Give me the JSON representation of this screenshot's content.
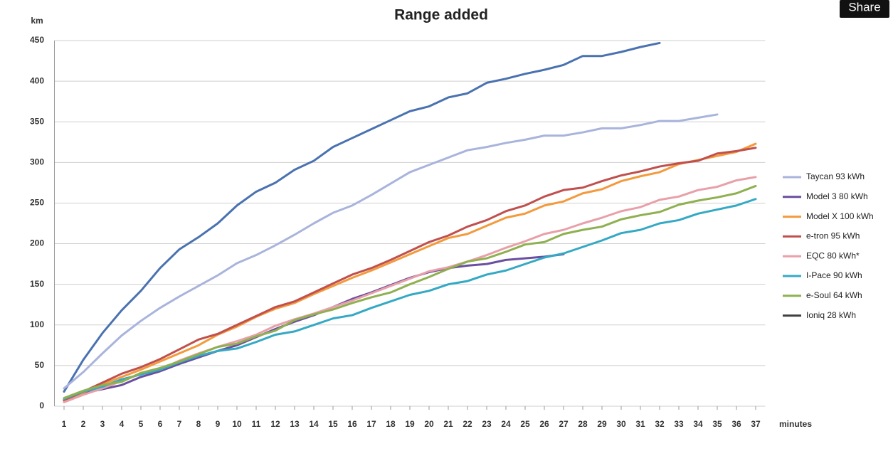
{
  "share_button": "Share",
  "chart_data": {
    "type": "line",
    "title": "Range added",
    "y_label": "km",
    "x_label": "minutes",
    "x": [
      1,
      2,
      3,
      4,
      5,
      6,
      7,
      8,
      9,
      10,
      11,
      12,
      13,
      14,
      15,
      16,
      17,
      18,
      19,
      20,
      21,
      22,
      23,
      24,
      25,
      26,
      27,
      28,
      29,
      30,
      31,
      32,
      33,
      34,
      35,
      36,
      37
    ],
    "xlim": [
      0.5,
      37.5
    ],
    "xticks": [
      1,
      2,
      3,
      4,
      5,
      6,
      7,
      8,
      9,
      10,
      11,
      12,
      13,
      14,
      15,
      16,
      17,
      18,
      19,
      20,
      21,
      22,
      23,
      24,
      25,
      26,
      27,
      28,
      29,
      30,
      31,
      32,
      33,
      34,
      35,
      36,
      37
    ],
    "ylim": [
      0,
      450
    ],
    "yticks": [
      0,
      50,
      100,
      150,
      200,
      250,
      300,
      350,
      400,
      450
    ],
    "grid": true,
    "series": [
      {
        "color": "#4a72b0",
        "values": [
          18,
          57,
          90,
          118,
          142,
          170,
          193,
          208,
          225,
          247,
          264,
          275,
          291,
          302,
          319,
          330,
          341,
          352,
          363,
          369,
          380,
          385,
          398,
          403,
          409,
          414,
          420,
          431,
          431,
          436,
          442,
          447,
          null,
          null,
          null,
          null,
          null
        ]
      },
      {
        "name": "Taycan 93 kWh",
        "color": "#a9b4dc",
        "values": [
          22,
          42,
          65,
          87,
          105,
          121,
          135,
          148,
          161,
          176,
          186,
          198,
          211,
          225,
          238,
          247,
          260,
          274,
          288,
          297,
          306,
          315,
          319,
          324,
          328,
          333,
          333,
          337,
          342,
          342,
          346,
          351,
          351,
          355,
          359,
          null,
          null
        ]
      },
      {
        "name": "Model 3 80 kWh",
        "color": "#6a4fa0",
        "values": [
          8,
          16,
          21,
          26,
          36,
          43,
          52,
          60,
          68,
          75,
          85,
          95,
          104,
          112,
          122,
          132,
          140,
          149,
          158,
          165,
          170,
          173,
          175,
          180,
          182,
          184,
          187,
          null,
          null,
          null,
          null,
          null,
          null,
          null,
          null,
          null,
          null
        ]
      },
      {
        "name": "Model X 100 kWh",
        "color": "#f39a3c",
        "values": [
          6,
          17,
          27,
          36,
          45,
          55,
          65,
          75,
          88,
          98,
          110,
          120,
          127,
          138,
          148,
          158,
          167,
          177,
          187,
          197,
          207,
          212,
          222,
          232,
          237,
          247,
          252,
          262,
          267,
          277,
          283,
          288,
          298,
          303,
          308,
          313,
          323
        ]
      },
      {
        "name": "e-tron 95 kWh",
        "color": "#c0504d",
        "values": [
          7,
          18,
          29,
          40,
          48,
          58,
          70,
          82,
          89,
          100,
          111,
          122,
          129,
          140,
          151,
          162,
          170,
          180,
          191,
          202,
          210,
          221,
          229,
          240,
          247,
          258,
          266,
          269,
          277,
          284,
          289,
          295,
          299,
          302,
          311,
          314,
          318
        ]
      },
      {
        "name": "EQC 80 kWh*",
        "color": "#e8a0a8",
        "values": [
          5,
          14,
          22,
          31,
          40,
          45,
          56,
          65,
          73,
          80,
          88,
          99,
          107,
          114,
          122,
          130,
          139,
          148,
          157,
          166,
          171,
          178,
          186,
          195,
          203,
          212,
          217,
          225,
          232,
          240,
          245,
          254,
          258,
          266,
          270,
          278,
          282
        ]
      },
      {
        "name": "I-Pace 90 kWh",
        "color": "#34a9c4",
        "values": [
          9,
          18,
          24,
          33,
          39,
          45,
          54,
          62,
          68,
          71,
          79,
          88,
          92,
          100,
          108,
          112,
          121,
          129,
          137,
          142,
          150,
          154,
          162,
          167,
          175,
          183,
          188,
          196,
          204,
          213,
          217,
          225,
          229,
          237,
          242,
          247,
          255
        ]
      },
      {
        "name": "e-Soul 64 kWh",
        "color": "#8fb050",
        "values": [
          10,
          19,
          26,
          30,
          41,
          47,
          55,
          64,
          73,
          77,
          86,
          93,
          106,
          113,
          119,
          127,
          134,
          140,
          150,
          159,
          169,
          178,
          182,
          190,
          199,
          202,
          212,
          217,
          221,
          230,
          235,
          239,
          248,
          253,
          257,
          262,
          271
        ]
      },
      {
        "name": "Ioniq 28 kWh",
        "color": "#404040",
        "values": [
          null,
          null,
          null,
          null,
          null,
          null,
          null,
          null,
          null,
          null,
          null,
          null,
          null,
          null,
          null,
          null,
          null,
          null,
          null,
          null,
          null,
          null,
          null,
          null,
          null,
          null,
          null,
          null,
          null,
          null,
          null,
          null,
          null,
          null,
          null,
          null,
          null
        ]
      }
    ]
  }
}
